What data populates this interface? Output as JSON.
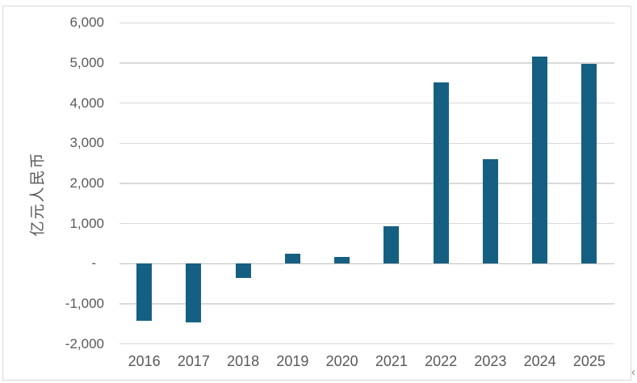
{
  "chart_data": {
    "type": "bar",
    "title": "",
    "categories": [
      "2016",
      "2017",
      "2018",
      "2019",
      "2020",
      "2021",
      "2022",
      "2023",
      "2024",
      "2025"
    ],
    "values": [
      -1430,
      -1470,
      -350,
      240,
      175,
      930,
      4510,
      2600,
      5170,
      4980
    ],
    "xlabel": "",
    "ylabel": "亿元人民币",
    "ylim": [
      -2000,
      6000
    ],
    "ytick_interval": 1000,
    "ytick_labels": [
      "6,000",
      "5,000",
      "4,000",
      "3,000",
      "2,000",
      "1,000",
      "-",
      "-1,000",
      "-2,000"
    ],
    "grid": true,
    "legend_position": "none",
    "bar_color": "#156082",
    "gridline_color": "#d9d9d9",
    "zero_axis_color": "#bfbfbf",
    "axis_text_color": "#595959",
    "frame_color": "#d9d9d9"
  },
  "misc": {
    "corner_mark": "‹"
  }
}
